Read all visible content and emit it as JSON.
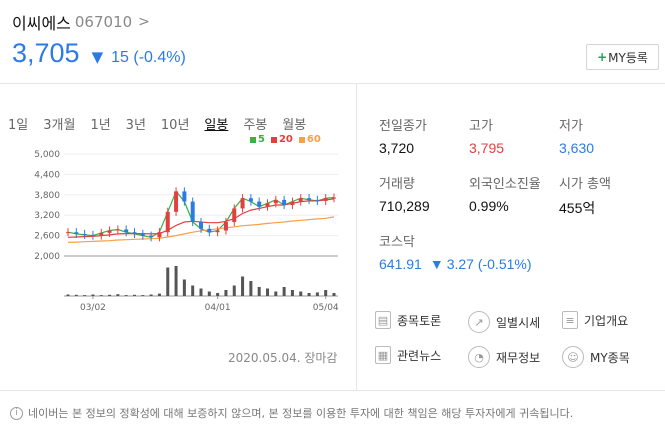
{
  "stock": {
    "name": "이씨에스",
    "code": "067010",
    "chevron": ">",
    "price": "3,705",
    "change_arrow": "▼",
    "change": "15 (-0.4%)"
  },
  "my_button": {
    "plus": "+",
    "label": "MY등록"
  },
  "tabs": [
    "1일",
    "3개월",
    "1년",
    "3년",
    "10년",
    "일봉",
    "주봉",
    "월봉"
  ],
  "active_tab": "일봉",
  "legend": [
    {
      "label": "5",
      "color": "#3cb043"
    },
    {
      "label": "20",
      "color": "#e24040"
    },
    {
      "label": "60",
      "color": "#f5a04a"
    }
  ],
  "chart_data": {
    "type": "line",
    "y_ticks": [
      "5,000",
      "4,400",
      "3,800",
      "3,200",
      "2,600",
      "2,000"
    ],
    "x_ticks": [
      "03/02",
      "04/01",
      "05/04"
    ],
    "ylim": [
      2000,
      5000
    ],
    "grid": true,
    "series": [
      {
        "name": "5",
        "values": [
          2700,
          2650,
          2620,
          2600,
          2680,
          2750,
          2780,
          2700,
          2650,
          2600,
          2550,
          2700,
          3300,
          3900,
          3600,
          3000,
          2800,
          2700,
          2750,
          3000,
          3400,
          3700,
          3600,
          3450,
          3550,
          3650,
          3500,
          3600,
          3700,
          3650,
          3620,
          3700,
          3720
        ]
      },
      {
        "name": "20",
        "values": [
          2550,
          2560,
          2570,
          2580,
          2600,
          2620,
          2650,
          2660,
          2660,
          2660,
          2650,
          2660,
          2760,
          2900,
          3000,
          3020,
          3000,
          2980,
          2980,
          3020,
          3100,
          3250,
          3350,
          3400,
          3450,
          3500,
          3500,
          3550,
          3600,
          3620,
          3620,
          3650,
          3680
        ]
      },
      {
        "name": "60",
        "values": [
          2400,
          2410,
          2420,
          2430,
          2440,
          2450,
          2470,
          2480,
          2490,
          2500,
          2510,
          2520,
          2560,
          2600,
          2650,
          2700,
          2740,
          2770,
          2800,
          2830,
          2860,
          2890,
          2910,
          2930,
          2960,
          2980,
          3000,
          3030,
          3050,
          3070,
          3090,
          3110,
          3150
        ]
      }
    ],
    "volume": [
      0.05,
      0.04,
      0.03,
      0.05,
      0.03,
      0.04,
      0.06,
      0.03,
      0.04,
      0.03,
      0.05,
      0.08,
      0.95,
      1.0,
      0.55,
      0.35,
      0.25,
      0.15,
      0.1,
      0.2,
      0.35,
      0.65,
      0.5,
      0.3,
      0.25,
      0.15,
      0.3,
      0.2,
      0.15,
      0.1,
      0.12,
      0.2,
      0.1
    ]
  },
  "chart_date": "2020.05.04. 장마감",
  "stats": {
    "prev_close": {
      "label": "전일종가",
      "value": "3,720"
    },
    "high": {
      "label": "고가",
      "value": "3,795"
    },
    "low": {
      "label": "저가",
      "value": "3,630"
    },
    "volume": {
      "label": "거래량",
      "value": "710,289"
    },
    "foreign": {
      "label": "외국인소진율",
      "value": "0.99%"
    },
    "market_cap": {
      "label": "시가 총액",
      "value": "455억"
    },
    "index_name": {
      "label": "코스닥",
      "value": "641.91"
    },
    "index_change": {
      "arrow": "▼",
      "value": "3.27 (-0.51%)"
    }
  },
  "links": [
    {
      "label": "종목토론",
      "icon": "chart-icon"
    },
    {
      "label": "일별시세",
      "icon": "trend-icon"
    },
    {
      "label": "기업개요",
      "icon": "document-icon"
    },
    {
      "label": "관련뉴스",
      "icon": "news-icon"
    },
    {
      "label": "재무정보",
      "icon": "pie-icon"
    },
    {
      "label": "MY종목",
      "icon": "person-icon"
    }
  ],
  "disclaimer": "네이버는 본 정보의 정확성에 대해 보증하지 않으며, 본 정보를 이용한 투자에 대한 책임은 해당 투자자에게 귀속됩니다."
}
